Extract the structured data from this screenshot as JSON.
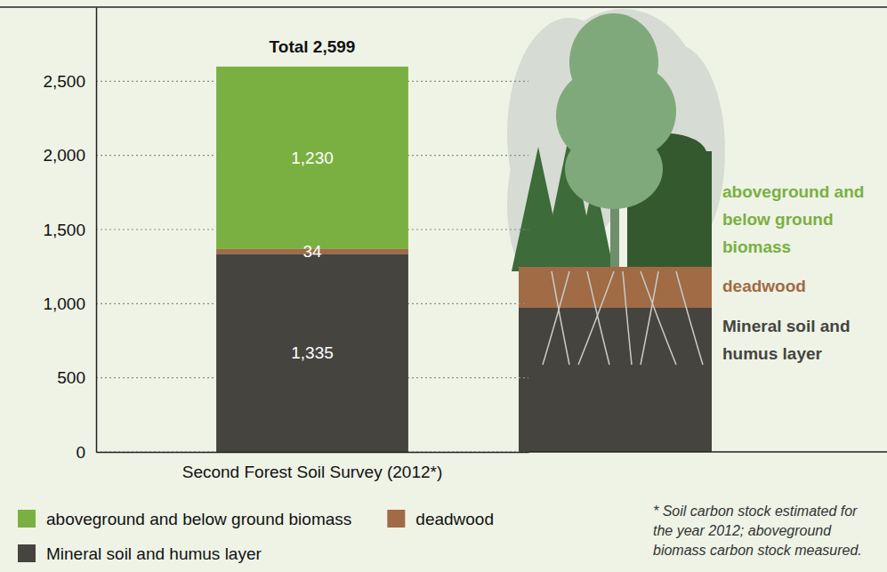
{
  "chart_data": {
    "type": "bar",
    "stacked": true,
    "data_labels": true,
    "grid": true,
    "legend": "bottom",
    "categories": [
      "Second Forest Soil Survey (2012*)"
    ],
    "series": [
      {
        "name": "aboveground and below ground biomass",
        "color": "#7ab041",
        "values": [
          1230
        ],
        "value_labels": [
          "1,230"
        ]
      },
      {
        "name": "deadwood",
        "color": "#a06b45",
        "values": [
          34
        ],
        "value_labels": [
          "34"
        ]
      },
      {
        "name": "Mineral soil and humus layer",
        "color": "#46443f",
        "values": [
          1335
        ],
        "value_labels": [
          "1,335"
        ]
      }
    ],
    "ylim": [
      0,
      3000
    ],
    "yticks": [
      0,
      500,
      {
        "value": 1000,
        "label": "1,000"
      },
      {
        "value": 1500,
        "label": "1,500"
      },
      {
        "value": 2000,
        "label": "2,000"
      },
      {
        "value": 2500,
        "label": "2,500"
      }
    ],
    "annotations": [
      {
        "text": "Total 2,599",
        "value": 2599
      }
    ],
    "footnote": "* Soil carbon stock estimated for the year 2012; aboveground biomass carbon stock measured."
  }
}
